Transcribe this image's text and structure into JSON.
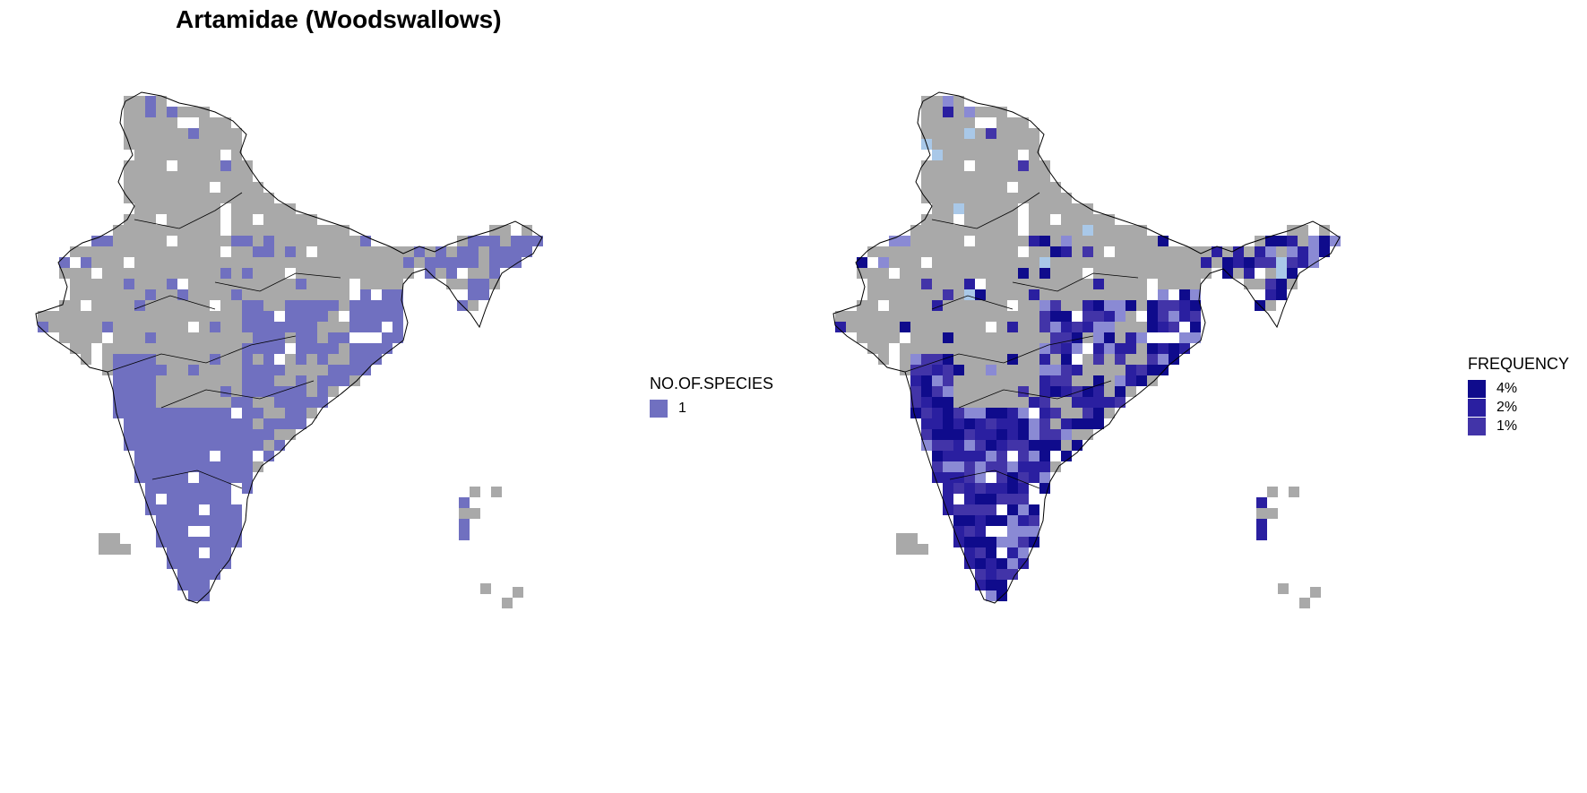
{
  "title": "Artamidae (Woodswallows)",
  "colors": {
    "grid_gray": "#a9a9a9",
    "species_purple": "#7070c0",
    "freq_4": "#0f0b8c",
    "freq_2": "#2a1fa0",
    "freq_1": "#4234a8",
    "freq_light": "#8a8ad4",
    "freq_lightblue": "#a9c8e8"
  },
  "left_map": {
    "name": "species-map",
    "legend": {
      "title": "NO.OF.SPECIES",
      "items": [
        {
          "label": "1",
          "color": "#7070c0"
        }
      ]
    }
  },
  "right_map": {
    "name": "frequency-map",
    "legend": {
      "title": "FREQUENCY",
      "items": [
        {
          "label": "4%",
          "color": "#0f0b8c"
        },
        {
          "label": "2%",
          "color": "#2a1fa0"
        },
        {
          "label": "1%",
          "color": "#4234a8"
        }
      ]
    }
  }
}
